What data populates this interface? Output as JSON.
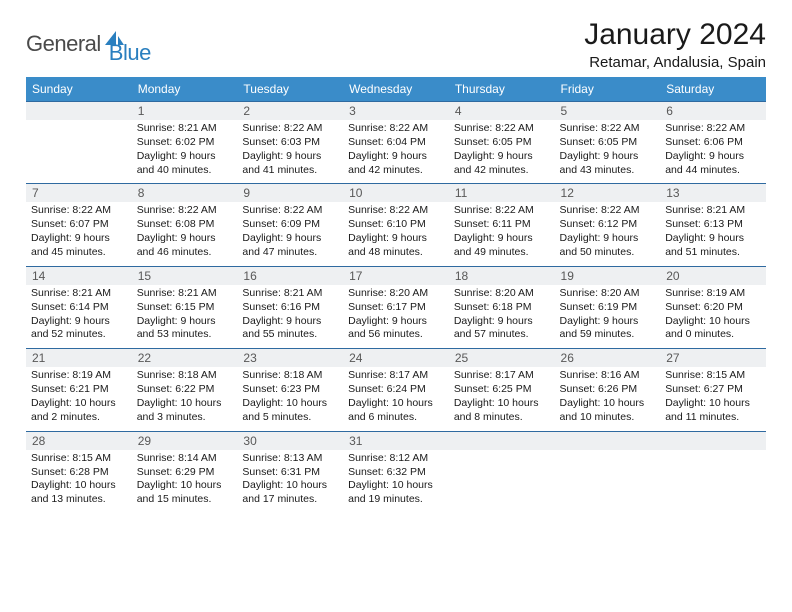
{
  "brand": {
    "part1": "General",
    "part2": "Blue"
  },
  "title": "January 2024",
  "location": "Retamar, Andalusia, Spain",
  "colors": {
    "header_bg": "#3a8cc9",
    "row_border": "#2f6aa0",
    "daynum_bg": "#eef0f2",
    "brand_blue": "#2a7fbf",
    "brand_gray": "#4a4a4a"
  },
  "dow": [
    "Sunday",
    "Monday",
    "Tuesday",
    "Wednesday",
    "Thursday",
    "Friday",
    "Saturday"
  ],
  "weeks": [
    [
      null,
      {
        "n": "1",
        "sr": "Sunrise: 8:21 AM",
        "ss": "Sunset: 6:02 PM",
        "d1": "Daylight: 9 hours",
        "d2": "and 40 minutes."
      },
      {
        "n": "2",
        "sr": "Sunrise: 8:22 AM",
        "ss": "Sunset: 6:03 PM",
        "d1": "Daylight: 9 hours",
        "d2": "and 41 minutes."
      },
      {
        "n": "3",
        "sr": "Sunrise: 8:22 AM",
        "ss": "Sunset: 6:04 PM",
        "d1": "Daylight: 9 hours",
        "d2": "and 42 minutes."
      },
      {
        "n": "4",
        "sr": "Sunrise: 8:22 AM",
        "ss": "Sunset: 6:05 PM",
        "d1": "Daylight: 9 hours",
        "d2": "and 42 minutes."
      },
      {
        "n": "5",
        "sr": "Sunrise: 8:22 AM",
        "ss": "Sunset: 6:05 PM",
        "d1": "Daylight: 9 hours",
        "d2": "and 43 minutes."
      },
      {
        "n": "6",
        "sr": "Sunrise: 8:22 AM",
        "ss": "Sunset: 6:06 PM",
        "d1": "Daylight: 9 hours",
        "d2": "and 44 minutes."
      }
    ],
    [
      {
        "n": "7",
        "sr": "Sunrise: 8:22 AM",
        "ss": "Sunset: 6:07 PM",
        "d1": "Daylight: 9 hours",
        "d2": "and 45 minutes."
      },
      {
        "n": "8",
        "sr": "Sunrise: 8:22 AM",
        "ss": "Sunset: 6:08 PM",
        "d1": "Daylight: 9 hours",
        "d2": "and 46 minutes."
      },
      {
        "n": "9",
        "sr": "Sunrise: 8:22 AM",
        "ss": "Sunset: 6:09 PM",
        "d1": "Daylight: 9 hours",
        "d2": "and 47 minutes."
      },
      {
        "n": "10",
        "sr": "Sunrise: 8:22 AM",
        "ss": "Sunset: 6:10 PM",
        "d1": "Daylight: 9 hours",
        "d2": "and 48 minutes."
      },
      {
        "n": "11",
        "sr": "Sunrise: 8:22 AM",
        "ss": "Sunset: 6:11 PM",
        "d1": "Daylight: 9 hours",
        "d2": "and 49 minutes."
      },
      {
        "n": "12",
        "sr": "Sunrise: 8:22 AM",
        "ss": "Sunset: 6:12 PM",
        "d1": "Daylight: 9 hours",
        "d2": "and 50 minutes."
      },
      {
        "n": "13",
        "sr": "Sunrise: 8:21 AM",
        "ss": "Sunset: 6:13 PM",
        "d1": "Daylight: 9 hours",
        "d2": "and 51 minutes."
      }
    ],
    [
      {
        "n": "14",
        "sr": "Sunrise: 8:21 AM",
        "ss": "Sunset: 6:14 PM",
        "d1": "Daylight: 9 hours",
        "d2": "and 52 minutes."
      },
      {
        "n": "15",
        "sr": "Sunrise: 8:21 AM",
        "ss": "Sunset: 6:15 PM",
        "d1": "Daylight: 9 hours",
        "d2": "and 53 minutes."
      },
      {
        "n": "16",
        "sr": "Sunrise: 8:21 AM",
        "ss": "Sunset: 6:16 PM",
        "d1": "Daylight: 9 hours",
        "d2": "and 55 minutes."
      },
      {
        "n": "17",
        "sr": "Sunrise: 8:20 AM",
        "ss": "Sunset: 6:17 PM",
        "d1": "Daylight: 9 hours",
        "d2": "and 56 minutes."
      },
      {
        "n": "18",
        "sr": "Sunrise: 8:20 AM",
        "ss": "Sunset: 6:18 PM",
        "d1": "Daylight: 9 hours",
        "d2": "and 57 minutes."
      },
      {
        "n": "19",
        "sr": "Sunrise: 8:20 AM",
        "ss": "Sunset: 6:19 PM",
        "d1": "Daylight: 9 hours",
        "d2": "and 59 minutes."
      },
      {
        "n": "20",
        "sr": "Sunrise: 8:19 AM",
        "ss": "Sunset: 6:20 PM",
        "d1": "Daylight: 10 hours",
        "d2": "and 0 minutes."
      }
    ],
    [
      {
        "n": "21",
        "sr": "Sunrise: 8:19 AM",
        "ss": "Sunset: 6:21 PM",
        "d1": "Daylight: 10 hours",
        "d2": "and 2 minutes."
      },
      {
        "n": "22",
        "sr": "Sunrise: 8:18 AM",
        "ss": "Sunset: 6:22 PM",
        "d1": "Daylight: 10 hours",
        "d2": "and 3 minutes."
      },
      {
        "n": "23",
        "sr": "Sunrise: 8:18 AM",
        "ss": "Sunset: 6:23 PM",
        "d1": "Daylight: 10 hours",
        "d2": "and 5 minutes."
      },
      {
        "n": "24",
        "sr": "Sunrise: 8:17 AM",
        "ss": "Sunset: 6:24 PM",
        "d1": "Daylight: 10 hours",
        "d2": "and 6 minutes."
      },
      {
        "n": "25",
        "sr": "Sunrise: 8:17 AM",
        "ss": "Sunset: 6:25 PM",
        "d1": "Daylight: 10 hours",
        "d2": "and 8 minutes."
      },
      {
        "n": "26",
        "sr": "Sunrise: 8:16 AM",
        "ss": "Sunset: 6:26 PM",
        "d1": "Daylight: 10 hours",
        "d2": "and 10 minutes."
      },
      {
        "n": "27",
        "sr": "Sunrise: 8:15 AM",
        "ss": "Sunset: 6:27 PM",
        "d1": "Daylight: 10 hours",
        "d2": "and 11 minutes."
      }
    ],
    [
      {
        "n": "28",
        "sr": "Sunrise: 8:15 AM",
        "ss": "Sunset: 6:28 PM",
        "d1": "Daylight: 10 hours",
        "d2": "and 13 minutes."
      },
      {
        "n": "29",
        "sr": "Sunrise: 8:14 AM",
        "ss": "Sunset: 6:29 PM",
        "d1": "Daylight: 10 hours",
        "d2": "and 15 minutes."
      },
      {
        "n": "30",
        "sr": "Sunrise: 8:13 AM",
        "ss": "Sunset: 6:31 PM",
        "d1": "Daylight: 10 hours",
        "d2": "and 17 minutes."
      },
      {
        "n": "31",
        "sr": "Sunrise: 8:12 AM",
        "ss": "Sunset: 6:32 PM",
        "d1": "Daylight: 10 hours",
        "d2": "and 19 minutes."
      },
      null,
      null,
      null
    ]
  ]
}
